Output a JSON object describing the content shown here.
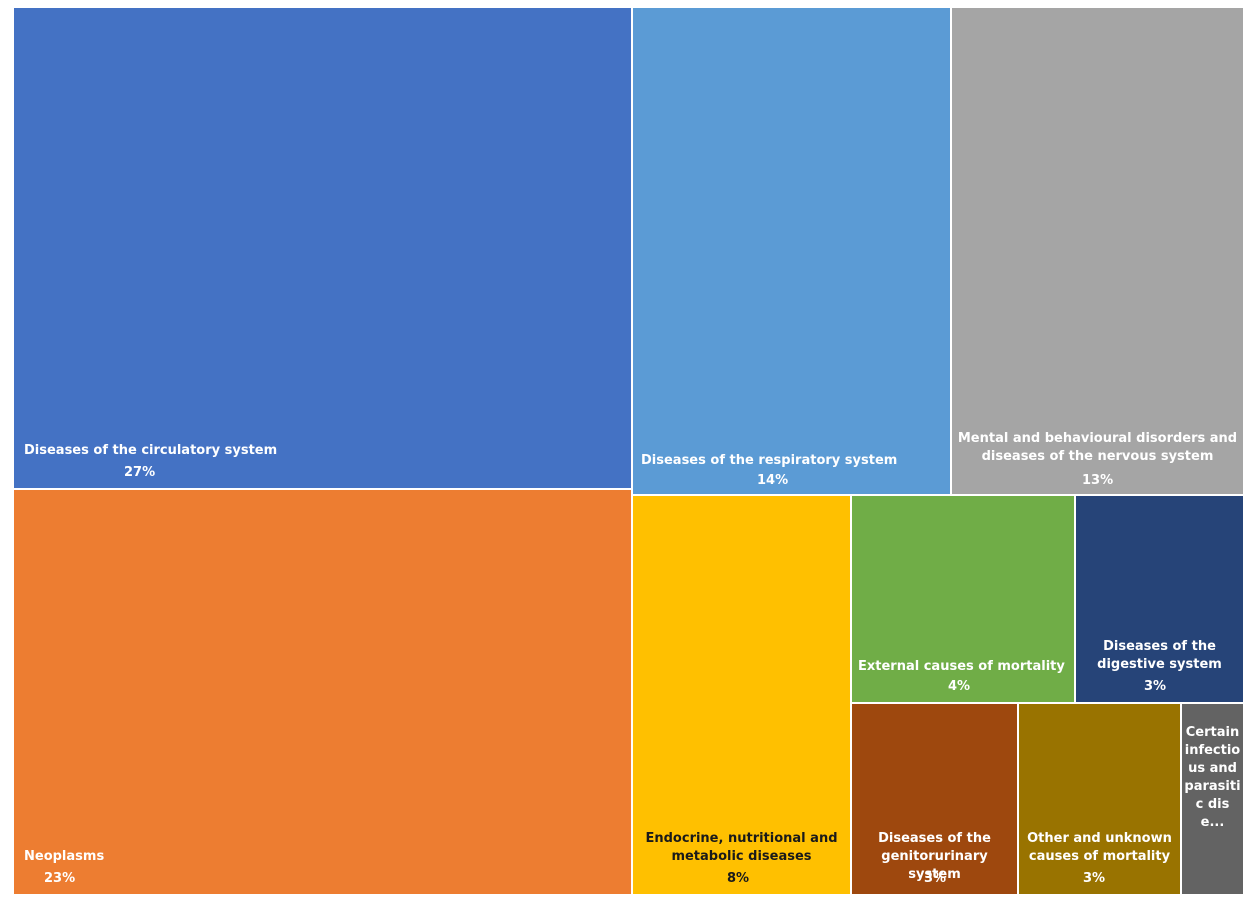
{
  "chart_data": {
    "type": "treemap",
    "title": "",
    "items": [
      {
        "label": "Diseases of the circulatory system",
        "value": "27%",
        "color": "#4472C4"
      },
      {
        "label": "Neoplasms",
        "value": "23%",
        "color": "#ED7D31"
      },
      {
        "label": "Diseases of the respiratory system",
        "value": "14%",
        "color": "#5B9BD5"
      },
      {
        "label": "Mental and behavioural disorders and diseases of the nervous system",
        "value": "13%",
        "color": "#A5A5A5"
      },
      {
        "label": "Endocrine, nutritional and metabolic diseases",
        "value": "8%",
        "color": "#FFC000"
      },
      {
        "label": "External causes of mortality",
        "value": "4%",
        "color": "#70AD47"
      },
      {
        "label": "Diseases of the digestive system",
        "value": "3%",
        "color": "#264478"
      },
      {
        "label": "Diseases of the genitorurinary system",
        "value": "3%",
        "color": "#9E480E"
      },
      {
        "label": "Other and unknown causes of mortality",
        "value": "3%",
        "color": "#997300"
      },
      {
        "label": "Certain infectious and parasitic dise...",
        "value": "",
        "color": "#636363"
      }
    ]
  }
}
